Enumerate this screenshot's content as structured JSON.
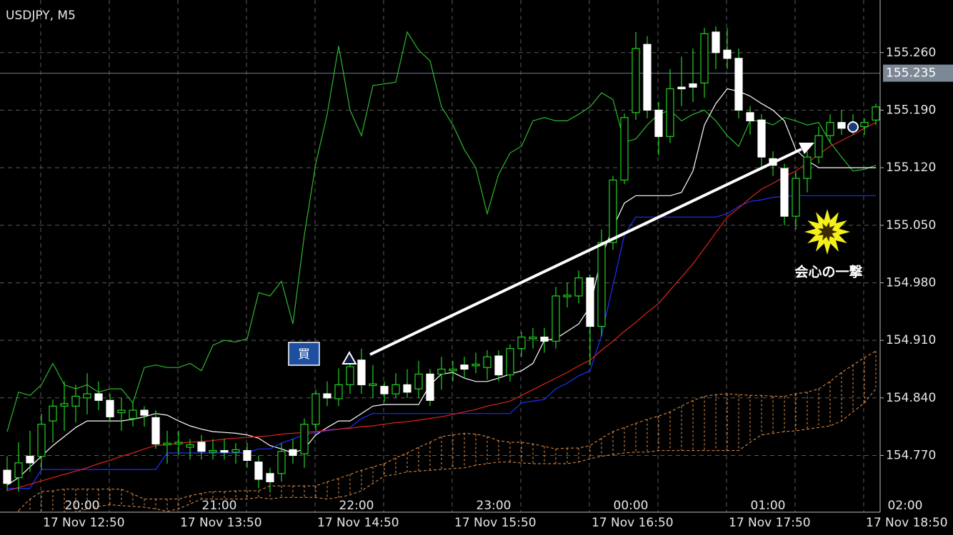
{
  "chart_data": {
    "type": "candlestick",
    "title": "USDJPY, M5",
    "ylim": [
      154.701,
      155.324
    ],
    "yticks": [
      {
        "value": 154.77,
        "label": "154.770"
      },
      {
        "value": 154.84,
        "label": "154.840"
      },
      {
        "value": 154.91,
        "label": "154.910"
      },
      {
        "value": 154.98,
        "label": "154.980"
      },
      {
        "value": 155.05,
        "label": "155.050"
      },
      {
        "value": 155.12,
        "label": "155.120"
      },
      {
        "value": 155.19,
        "label": "155.190"
      },
      {
        "value": 155.26,
        "label": "155.260"
      }
    ],
    "grid": true,
    "current_price": {
      "value": 155.235,
      "label": "155.235"
    },
    "time_labels": [
      "20:00",
      "21:00",
      "22:00",
      "23:00",
      "00:00",
      "01:00",
      "02:00"
    ],
    "date_labels": [
      "17 Nov 12:50",
      "17 Nov 13:50",
      "17 Nov 14:50",
      "17 Nov 15:50",
      "17 Nov 16:50",
      "17 Nov 17:50",
      "17 Nov 18:50"
    ],
    "up_color": "#000000",
    "down_color": "#ffffff",
    "wick_color": "#22d322",
    "ohlc": [
      [
        154.752,
        154.769,
        154.727,
        154.736
      ],
      [
        154.743,
        154.786,
        154.726,
        154.761
      ],
      [
        154.769,
        154.8,
        154.75,
        154.761
      ],
      [
        154.769,
        154.821,
        154.752,
        154.808
      ],
      [
        154.812,
        154.838,
        154.786,
        154.83
      ],
      [
        154.83,
        154.86,
        154.8,
        154.833
      ],
      [
        154.83,
        154.856,
        154.81,
        154.842
      ],
      [
        154.84,
        154.87,
        154.82,
        154.845
      ],
      [
        154.845,
        154.86,
        154.825,
        154.837
      ],
      [
        154.837,
        154.845,
        154.81,
        154.817
      ],
      [
        154.822,
        154.84,
        154.8,
        154.825
      ],
      [
        154.815,
        154.835,
        154.805,
        154.825
      ],
      [
        154.825,
        154.83,
        154.805,
        154.819
      ],
      [
        154.816,
        154.825,
        154.778,
        154.784
      ],
      [
        154.783,
        154.8,
        154.76,
        154.785
      ],
      [
        154.784,
        154.8,
        154.77,
        154.786
      ],
      [
        154.78,
        154.79,
        154.765,
        154.783
      ],
      [
        154.786,
        154.795,
        154.765,
        154.775
      ],
      [
        154.774,
        154.79,
        154.765,
        154.776
      ],
      [
        154.776,
        154.79,
        154.765,
        154.774
      ],
      [
        154.774,
        154.785,
        154.76,
        154.777
      ],
      [
        154.776,
        154.785,
        154.755,
        154.764
      ],
      [
        154.762,
        154.77,
        154.73,
        154.741
      ],
      [
        154.748,
        154.755,
        154.725,
        154.738
      ],
      [
        154.748,
        154.785,
        154.738,
        154.775
      ],
      [
        154.777,
        154.79,
        154.76,
        154.77
      ],
      [
        154.772,
        154.815,
        154.755,
        154.808
      ],
      [
        154.808,
        154.85,
        154.8,
        154.845
      ],
      [
        154.845,
        154.86,
        154.83,
        154.84
      ],
      [
        154.839,
        154.876,
        154.83,
        154.856
      ],
      [
        154.856,
        154.89,
        154.845,
        154.878
      ],
      [
        154.886,
        154.9,
        154.845,
        154.856
      ],
      [
        154.855,
        154.88,
        154.84,
        154.857
      ],
      [
        154.854,
        154.86,
        154.835,
        154.845
      ],
      [
        154.845,
        154.87,
        154.84,
        154.856
      ],
      [
        154.856,
        154.875,
        154.84,
        154.847
      ],
      [
        154.851,
        154.885,
        154.84,
        154.869
      ],
      [
        154.869,
        154.875,
        154.83,
        154.837
      ],
      [
        154.869,
        154.89,
        154.85,
        154.875
      ],
      [
        154.873,
        154.885,
        154.86,
        154.875
      ],
      [
        154.88,
        154.89,
        154.865,
        154.875
      ],
      [
        154.879,
        154.895,
        154.87,
        154.881
      ],
      [
        154.877,
        154.898,
        154.862,
        154.89
      ],
      [
        154.891,
        154.898,
        154.86,
        154.868
      ],
      [
        154.868,
        154.905,
        154.86,
        154.9
      ],
      [
        154.9,
        154.92,
        154.89,
        154.914
      ],
      [
        154.912,
        154.925,
        154.9,
        154.914
      ],
      [
        154.914,
        154.925,
        154.895,
        154.909
      ],
      [
        154.909,
        154.975,
        154.9,
        154.964
      ],
      [
        154.963,
        154.98,
        154.95,
        154.965
      ],
      [
        154.964,
        154.995,
        154.955,
        154.986
      ],
      [
        154.986,
        154.99,
        154.88,
        154.927
      ],
      [
        154.927,
        155.045,
        154.915,
        155.029
      ],
      [
        155.029,
        155.11,
        155.02,
        155.105
      ],
      [
        155.105,
        155.186,
        155.1,
        155.181
      ],
      [
        155.187,
        155.285,
        155.178,
        155.265
      ],
      [
        155.27,
        155.28,
        155.18,
        155.19
      ],
      [
        155.19,
        155.2,
        155.135,
        155.158
      ],
      [
        155.158,
        155.24,
        155.15,
        155.216
      ],
      [
        155.218,
        155.255,
        155.195,
        155.216
      ],
      [
        155.222,
        155.265,
        155.2,
        155.218
      ],
      [
        155.223,
        155.29,
        155.205,
        155.283
      ],
      [
        155.285,
        155.292,
        155.24,
        155.26
      ],
      [
        155.263,
        155.29,
        155.24,
        155.253
      ],
      [
        155.253,
        155.265,
        155.18,
        155.19
      ],
      [
        155.187,
        155.195,
        155.16,
        155.177
      ],
      [
        155.178,
        155.185,
        155.12,
        155.133
      ],
      [
        155.131,
        155.14,
        155.11,
        155.123
      ],
      [
        155.119,
        155.125,
        155.05,
        155.061
      ],
      [
        155.061,
        155.115,
        155.045,
        155.107
      ],
      [
        155.107,
        155.14,
        155.09,
        155.133
      ],
      [
        155.133,
        155.17,
        155.125,
        155.159
      ],
      [
        155.159,
        155.185,
        155.15,
        155.175
      ],
      [
        155.175,
        155.19,
        155.16,
        155.168
      ],
      [
        155.171,
        155.185,
        155.16,
        155.174
      ],
      [
        155.17,
        155.18,
        155.16,
        155.175
      ],
      [
        155.178,
        155.198,
        155.172,
        155.194
      ]
    ],
    "lines": [
      {
        "color": "#2db82d",
        "values": [
          154.799,
          154.847,
          154.843,
          154.856,
          154.882,
          154.856,
          154.851,
          154.856,
          154.847,
          154.851,
          154.851,
          154.834,
          154.877,
          154.88,
          154.877,
          154.877,
          154.882,
          154.873,
          154.904,
          154.91,
          154.908,
          154.912,
          154.968,
          154.964,
          154.982,
          154.93,
          155.038,
          155.125,
          155.185,
          155.268,
          155.19,
          155.159,
          155.22,
          155.222,
          155.224,
          155.285,
          155.263,
          155.25,
          155.194,
          155.172,
          155.142,
          155.12,
          155.064,
          155.112,
          155.138,
          155.146,
          155.177,
          155.181,
          155.177,
          155.177,
          155.185,
          155.194,
          155.211,
          155.203,
          155.151,
          155.155,
          155.172,
          155.185,
          155.19,
          155.177,
          155.185,
          155.19,
          155.177,
          155.159,
          155.146,
          155.177,
          155.177,
          155.172,
          155.181,
          155.177,
          155.172,
          155.175,
          155.151,
          155.133,
          155.116,
          155.118,
          155.123
        ]
      },
      {
        "color": "#ffffff",
        "values": [
          154.734,
          154.743,
          154.756,
          154.769,
          154.782,
          154.793,
          154.804,
          154.812,
          154.812,
          154.812,
          154.812,
          154.814,
          154.817,
          154.821,
          154.819,
          154.812,
          154.806,
          154.802,
          154.799,
          154.798,
          154.797,
          154.795,
          154.791,
          154.782,
          154.778,
          154.773,
          154.778,
          154.795,
          154.804,
          154.812,
          154.812,
          154.821,
          154.83,
          154.832,
          154.832,
          154.832,
          154.832,
          154.856,
          154.869,
          154.871,
          154.864,
          154.86,
          154.86,
          154.864,
          154.869,
          154.873,
          154.882,
          154.91,
          154.912,
          154.921,
          154.93,
          154.951,
          155.012,
          155.047,
          155.077,
          155.086,
          155.086,
          155.086,
          155.086,
          155.09,
          155.116,
          155.172,
          155.198,
          155.216,
          155.213,
          155.207,
          155.198,
          155.19,
          155.177,
          155.142,
          155.129,
          155.12,
          155.12,
          155.12,
          155.12,
          155.12,
          155.12
        ]
      },
      {
        "color": "#1f2fff",
        "values": [
          154.73,
          154.73,
          154.73,
          154.753,
          154.753,
          154.753,
          154.753,
          154.753,
          154.753,
          154.753,
          154.753,
          154.753,
          154.753,
          154.753,
          154.773,
          154.773,
          154.773,
          154.773,
          154.773,
          154.773,
          154.773,
          154.773,
          154.778,
          154.778,
          154.785,
          154.79,
          154.795,
          154.798,
          154.8,
          154.802,
          154.804,
          154.815,
          154.821,
          154.821,
          154.821,
          154.821,
          154.821,
          154.821,
          154.821,
          154.821,
          154.821,
          154.821,
          154.821,
          154.821,
          154.821,
          154.834,
          154.836,
          154.838,
          154.851,
          154.858,
          154.867,
          154.873,
          154.916,
          154.977,
          155.038,
          155.06,
          155.06,
          155.06,
          155.06,
          155.06,
          155.06,
          155.06,
          155.06,
          155.064,
          155.073,
          155.079,
          155.081,
          155.084,
          155.085,
          155.086,
          155.086,
          155.086,
          155.086,
          155.086,
          155.086,
          155.086,
          155.086
        ]
      },
      {
        "color": "#e0231c",
        "values": [
          154.727,
          154.731,
          154.735,
          154.739,
          154.743,
          154.747,
          154.751,
          154.755,
          154.76,
          154.764,
          154.769,
          154.773,
          154.778,
          154.782,
          154.783,
          154.785,
          154.786,
          154.787,
          154.788,
          154.79,
          154.791,
          154.792,
          154.793,
          154.794,
          154.796,
          154.797,
          154.798,
          154.799,
          154.801,
          154.802,
          154.803,
          154.805,
          154.806,
          154.808,
          154.81,
          154.811,
          154.813,
          154.815,
          154.817,
          154.82,
          154.823,
          154.826,
          154.83,
          154.833,
          154.836,
          154.843,
          154.85,
          154.857,
          154.864,
          154.871,
          154.879,
          154.886,
          154.898,
          154.909,
          154.921,
          154.932,
          154.944,
          154.955,
          154.971,
          154.987,
          155.003,
          155.022,
          155.041,
          155.06,
          155.071,
          155.083,
          155.094,
          155.101,
          155.109,
          155.116,
          155.126,
          155.136,
          155.146,
          155.153,
          155.16,
          155.168,
          155.175
        ]
      }
    ],
    "cloud": {
      "color": "#e8924a",
      "span_a": [
        null,
        154.703,
        154.717,
        154.726,
        154.727,
        154.729,
        154.729,
        154.729,
        154.729,
        154.729,
        154.729,
        154.723,
        154.717,
        154.717,
        154.717,
        154.717,
        154.721,
        154.724,
        154.726,
        154.726,
        154.727,
        154.727,
        154.727,
        154.733,
        154.733,
        154.733,
        154.733,
        154.733,
        154.738,
        154.742,
        154.747,
        154.752,
        154.756,
        154.76,
        154.767,
        154.773,
        154.78,
        154.786,
        154.793,
        154.795,
        154.797,
        154.796,
        154.793,
        154.788,
        154.786,
        154.786,
        154.784,
        154.781,
        154.778,
        154.779,
        154.779,
        154.782,
        154.791,
        154.799,
        154.804,
        154.809,
        154.814,
        154.818,
        154.823,
        154.83,
        154.837,
        154.842,
        154.844,
        154.845,
        154.844,
        154.843,
        154.843,
        154.842,
        154.842,
        154.845,
        154.847,
        154.851,
        154.86,
        154.871,
        154.88,
        154.889,
        154.897
      ],
      "span_b": [
        null,
        154.701,
        154.701,
        154.701,
        154.701,
        154.701,
        154.701,
        154.705,
        154.708,
        154.71,
        154.709,
        154.708,
        154.707,
        154.705,
        154.702,
        154.705,
        154.711,
        154.717,
        154.717,
        154.717,
        154.717,
        154.717,
        154.719,
        154.717,
        154.719,
        154.719,
        154.719,
        154.719,
        154.717,
        154.719,
        154.722,
        154.727,
        154.736,
        154.745,
        154.747,
        154.75,
        154.751,
        154.752,
        154.753,
        154.754,
        154.755,
        154.758,
        154.76,
        154.762,
        154.762,
        154.761,
        154.76,
        154.76,
        154.76,
        154.76,
        154.762,
        154.766,
        154.769,
        154.771,
        154.773,
        154.774,
        154.774,
        154.776,
        154.776,
        154.776,
        154.776,
        154.776,
        154.776,
        154.776,
        154.776,
        154.786,
        154.795,
        154.797,
        154.799,
        154.8,
        154.802,
        154.804,
        154.806,
        154.812,
        154.823,
        154.834,
        154.851
      ]
    },
    "annotations": {
      "buy_badge": "買",
      "callout": "会心の一撃"
    }
  }
}
